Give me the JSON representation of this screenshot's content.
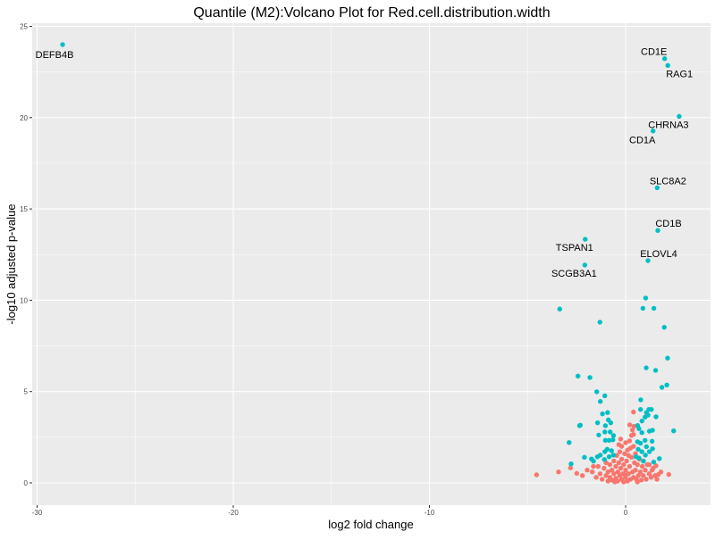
{
  "chart_data": {
    "type": "scatter",
    "title": "Quantile (M2):Volcano Plot for Red.cell.distribution.width",
    "xlabel": "log2 fold change",
    "ylabel": "-log10 adjusted p-value",
    "xlim": [
      -30.3,
      4.3
    ],
    "ylim": [
      -1.2,
      25.3
    ],
    "xticks": [
      -30,
      -20,
      -10,
      0
    ],
    "yticks": [
      0,
      5,
      10,
      15,
      20,
      25
    ],
    "grid": true,
    "legend": "none",
    "colors": {
      "significant": "#00BFC4",
      "not_significant": "#F8766D",
      "panel": "#EBEBEB"
    },
    "labeled_points": [
      {
        "gene": "DEFB4B",
        "x": -28.7,
        "y": 24.0
      },
      {
        "gene": "CD1E",
        "x": 1.99,
        "y": 23.23
      },
      {
        "gene": "RAG1",
        "x": 2.15,
        "y": 22.86
      },
      {
        "gene": "CHRNA3",
        "x": 2.73,
        "y": 20.07
      },
      {
        "gene": "CD1A",
        "x": 1.4,
        "y": 19.27
      },
      {
        "gene": "SLC8A2",
        "x": 1.61,
        "y": 16.16
      },
      {
        "gene": "CD1B",
        "x": 1.64,
        "y": 13.82
      },
      {
        "gene": "TSPAN1",
        "x": -2.06,
        "y": 13.34
      },
      {
        "gene": "ELOVL4",
        "x": 1.14,
        "y": 12.17
      },
      {
        "gene": "SCGB3A1",
        "x": -2.08,
        "y": 11.93
      }
    ],
    "series": [
      {
        "name": "significant",
        "points": [
          [
            1.02,
            10.12
          ],
          [
            -3.36,
            9.52
          ],
          [
            0.88,
            9.56
          ],
          [
            1.44,
            9.56
          ],
          [
            -1.31,
            8.8
          ],
          [
            1.97,
            8.52
          ],
          [
            2.14,
            6.83
          ],
          [
            1.05,
            6.3
          ],
          [
            1.53,
            6.16
          ],
          [
            -2.43,
            5.85
          ],
          [
            -1.82,
            5.77
          ],
          [
            2.1,
            5.36
          ],
          [
            1.85,
            5.23
          ],
          [
            -1.47,
            4.99
          ],
          [
            -1.06,
            4.77
          ],
          [
            -1.29,
            4.46
          ],
          [
            0.77,
            4.55
          ],
          [
            -1.18,
            3.78
          ],
          [
            -0.92,
            3.85
          ],
          [
            -1.43,
            3.29
          ],
          [
            -2.31,
            3.16
          ],
          [
            -2.35,
            3.13
          ],
          [
            2.45,
            2.85
          ],
          [
            -2.88,
            2.21
          ],
          [
            -2.78,
            1.04
          ],
          [
            -2.1,
            1.4
          ],
          [
            1.55,
            3.62
          ],
          [
            1.72,
            1.33
          ],
          [
            1.37,
            2.88
          ],
          [
            1.35,
            2.28
          ],
          [
            1.37,
            1.87
          ],
          [
            1.43,
            1.14
          ],
          [
            0.76,
            4.02
          ],
          [
            1.18,
            4.02
          ],
          [
            1.31,
            4.02
          ],
          [
            1.06,
            3.85
          ],
          [
            -1.03,
            3.13
          ],
          [
            -0.88,
            3.45
          ],
          [
            -0.76,
            3.29
          ],
          [
            -1.37,
            2.62
          ],
          [
            -1.06,
            2.79
          ],
          [
            -0.79,
            2.79
          ],
          [
            -0.62,
            2.59
          ],
          [
            -1.03,
            2.33
          ],
          [
            -0.84,
            2.33
          ],
          [
            -0.65,
            2.36
          ],
          [
            -0.94,
            1.84
          ],
          [
            -0.72,
            1.76
          ],
          [
            -1.06,
            1.71
          ],
          [
            -1.29,
            1.52
          ],
          [
            -0.84,
            1.43
          ],
          [
            -0.62,
            1.52
          ],
          [
            -1.44,
            1.43
          ],
          [
            -1.64,
            1.19
          ],
          [
            -1.74,
            1.31
          ],
          [
            -1.08,
            1.28
          ],
          [
            0.61,
            3.14
          ],
          [
            0.83,
            3.39
          ],
          [
            0.99,
            3.6
          ],
          [
            1.14,
            3.71
          ],
          [
            0.68,
            2.97
          ],
          [
            0.83,
            2.75
          ],
          [
            0.99,
            2.33
          ],
          [
            0.76,
            2.17
          ],
          [
            0.64,
            1.84
          ],
          [
            0.83,
            1.71
          ],
          [
            1.01,
            1.52
          ],
          [
            0.68,
            1.36
          ],
          [
            0.91,
            1.19
          ],
          [
            1.06,
            1.98
          ],
          [
            1.21,
            1.71
          ],
          [
            0.53,
            1.43
          ],
          [
            0.61,
            2.25
          ],
          [
            1.21,
            2.83
          ]
        ]
      },
      {
        "name": "not_significant",
        "points": [
          [
            -4.54,
            0.44
          ],
          [
            -3.42,
            0.6
          ],
          [
            -2.81,
            0.82
          ],
          [
            -2.49,
            0.52
          ],
          [
            -1.96,
            0.7
          ],
          [
            -1.64,
            0.9
          ],
          [
            0.4,
            3.88
          ],
          [
            0.21,
            3.18
          ],
          [
            0.43,
            3.1
          ],
          [
            0.4,
            2.65
          ],
          [
            1.55,
            0.94
          ],
          [
            1.67,
            0.46
          ],
          [
            2.2,
            0.46
          ],
          [
            1.35,
            0.7
          ],
          [
            -1.5,
            0.3
          ],
          [
            -1.3,
            0.5
          ],
          [
            -1.2,
            0.2
          ],
          [
            -1.1,
            0.8
          ],
          [
            -1.0,
            0.4
          ],
          [
            -0.9,
            0.6
          ],
          [
            -0.9,
            0.1
          ],
          [
            -0.8,
            1.0
          ],
          [
            -0.8,
            0.3
          ],
          [
            -0.7,
            0.7
          ],
          [
            -0.7,
            0.15
          ],
          [
            -0.6,
            1.2
          ],
          [
            -0.6,
            0.5
          ],
          [
            -0.5,
            0.9
          ],
          [
            -0.5,
            0.25
          ],
          [
            -0.45,
            1.5
          ],
          [
            -0.4,
            0.6
          ],
          [
            -0.4,
            0.1
          ],
          [
            -0.35,
            1.1
          ],
          [
            -0.3,
            1.7
          ],
          [
            -0.3,
            0.4
          ],
          [
            -0.25,
            0.8
          ],
          [
            -0.2,
            2.0
          ],
          [
            -0.2,
            1.3
          ],
          [
            -0.2,
            0.2
          ],
          [
            -0.15,
            0.5
          ],
          [
            -0.1,
            1.0
          ],
          [
            -0.1,
            0.05
          ],
          [
            -0.05,
            1.6
          ],
          [
            0,
            0.3
          ],
          [
            0,
            0.7
          ],
          [
            0.05,
            1.2
          ],
          [
            0.1,
            0.1
          ],
          [
            0.1,
            1.8
          ],
          [
            0.15,
            0.5
          ],
          [
            0.2,
            2.3
          ],
          [
            0.2,
            0.9
          ],
          [
            0.25,
            0.2
          ],
          [
            0.3,
            2.6
          ],
          [
            0.3,
            1.4
          ],
          [
            0.35,
            0.6
          ],
          [
            0.4,
            2.0
          ],
          [
            0.4,
            0.3
          ],
          [
            0.45,
            1.1
          ],
          [
            0.5,
            0.7
          ],
          [
            0.5,
            1.6
          ],
          [
            0.55,
            0.2
          ],
          [
            0.6,
            1.0
          ],
          [
            0.65,
            0.4
          ],
          [
            0.7,
            1.3
          ],
          [
            0.75,
            0.6
          ],
          [
            0.8,
            0.15
          ],
          [
            0.85,
            0.9
          ],
          [
            0.9,
            0.4
          ],
          [
            1.0,
            0.7
          ],
          [
            1.05,
            0.2
          ],
          [
            1.1,
            1.0
          ],
          [
            1.2,
            0.5
          ],
          [
            1.3,
            0.3
          ],
          [
            1.4,
            0.8
          ],
          [
            1.5,
            0.4
          ],
          [
            1.6,
            0.2
          ],
          [
            -1.7,
            0.6
          ],
          [
            -1.4,
            0.9
          ],
          [
            -1.0,
            1.1
          ],
          [
            0.9,
            1.2
          ],
          [
            1.2,
            1.0
          ],
          [
            -0.55,
            0.05
          ],
          [
            0.6,
            0.05
          ],
          [
            -0.25,
            2.4
          ],
          [
            0.0,
            2.2
          ],
          [
            -0.05,
            0.45
          ],
          [
            0.15,
            1.5
          ],
          [
            0.35,
            2.9
          ],
          [
            0.25,
            1.9
          ],
          [
            -0.35,
            2.1
          ],
          [
            1.8,
            0.6
          ],
          [
            -2.2,
            0.4
          ]
        ]
      }
    ]
  }
}
